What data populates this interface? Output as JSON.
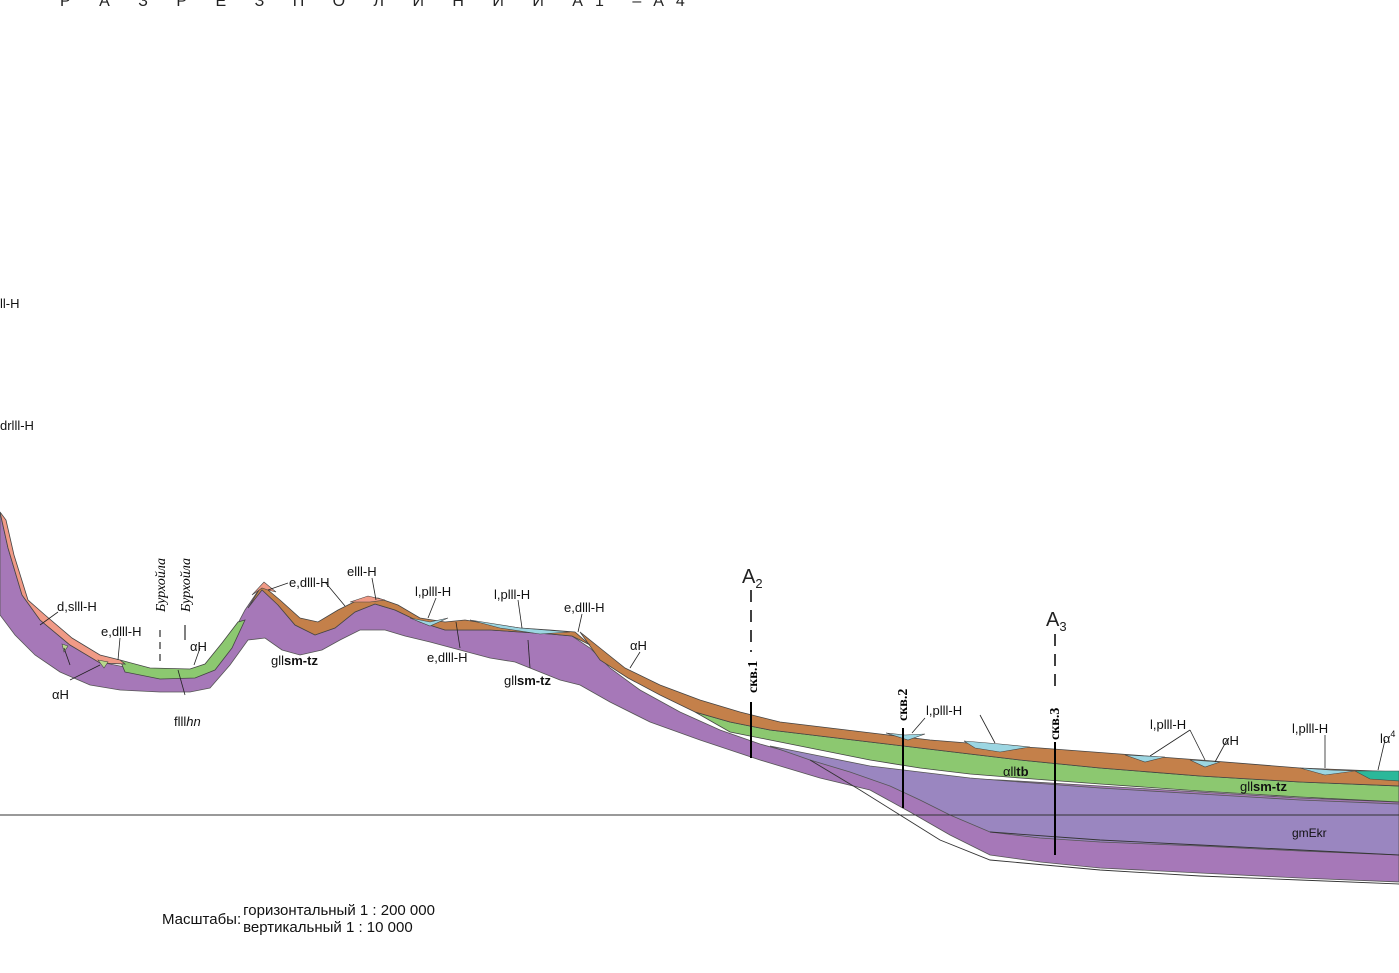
{
  "title": "Р А З Р Е З   П О   Л И Н И И   А1 –А4",
  "points": [
    {
      "letter": "А",
      "sub": "2"
    },
    {
      "letter": "А",
      "sub": "3"
    }
  ],
  "wells": [
    "скв.1",
    "скв.2",
    "скв.3"
  ],
  "river_labels": [
    "Бурхойла",
    "Бурхойла"
  ],
  "left_edge_labels": [
    "ll-H",
    "drlll-H"
  ],
  "unit_labels": {
    "d_s": "d,slll-H",
    "aH1": "αH",
    "ed1": "e,dlll-H",
    "fIII": "flll",
    "fIII_ital": "hn",
    "aH2": "αH",
    "ed2": "e,dlll-H",
    "gII1": "gll",
    "gII1_b": "sm-tz",
    "eIII": "elll-H",
    "lp1": "l,plll-H",
    "ed3": "e,dlll-H",
    "lp2": "l,plll-H",
    "gII2": "gll",
    "gII2_b": "sm-tz",
    "ed4": "e,dlll-H",
    "aH3": "αH",
    "lp3": "l,plll-H",
    "aIItb": "αll",
    "aIItb_b": "tb",
    "lp4": "l,plll-H",
    "aH4": "αH",
    "lp5": "l,plll-H",
    "gII3": "gll",
    "gII3_b": "sm-tz",
    "la4": "lα",
    "la4_sup": "4",
    "gmEkr": "gmEkr"
  },
  "scale": {
    "label": "Масштабы:",
    "horizontal": "горизонтальный 1 : 200 000",
    "vertical": "вертикальный 1 : 10 000"
  },
  "colors": {
    "purple": "#a678b8",
    "violet": "#9a86c0",
    "green": "#8cc870",
    "brown": "#c4804a",
    "pink": "#f09a86",
    "cyan": "#9cd6e2",
    "teal": "#2bb89a",
    "lightgreen": "#b8d88c"
  }
}
